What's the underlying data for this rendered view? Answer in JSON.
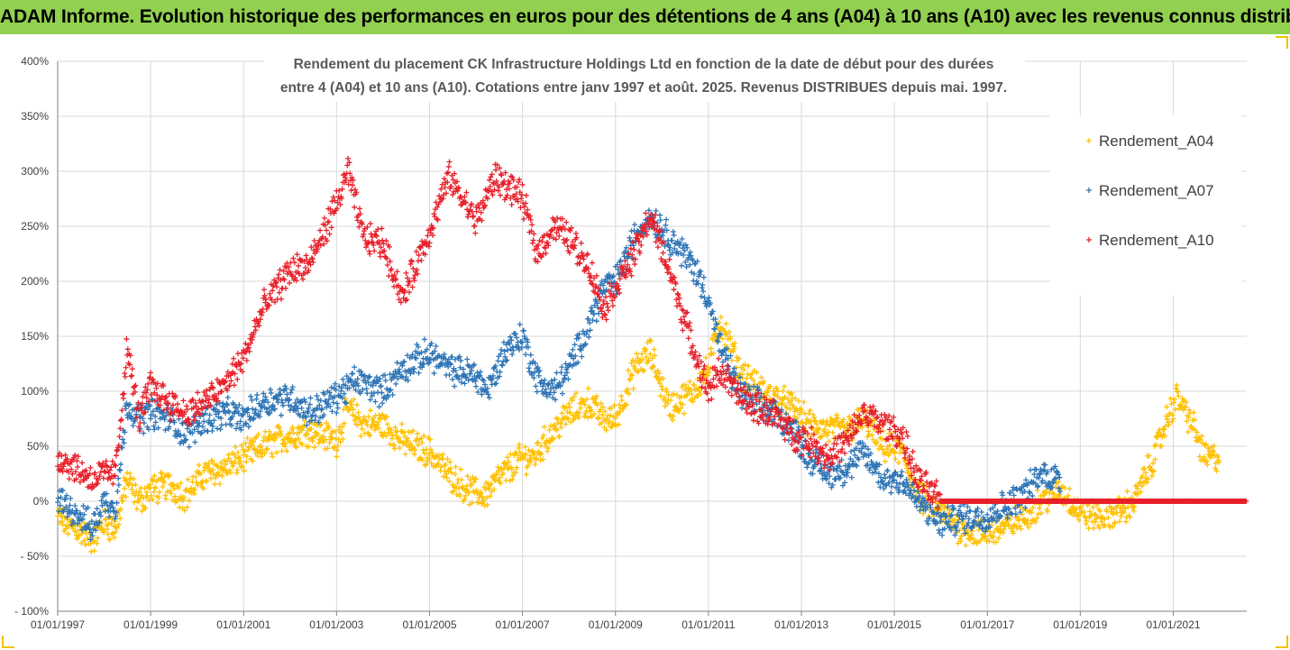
{
  "banner": {
    "title": "ADAM Informe. Evolution historique des performances en euros pour des détentions de 4 ans (A04) à 10 ans (A10) avec les revenus connus distribués"
  },
  "colors": {
    "banner_bg": "#92d050",
    "A04": "#ffc000",
    "A07": "#2e75b6",
    "A10": "#e8202a",
    "grid": "#d9d9d9"
  },
  "chart_data": {
    "type": "scatter",
    "title_lines": [
      "Rendement du placement CK Infrastructure Holdings Ltd en fonction de la date de début pour des durées",
      "entre 4 (A04) et 10 ans (A10). Cotations entre janv 1997 et août. 2025. Revenus DISTRIBUES depuis mai. 1997."
    ],
    "xlabel": "",
    "ylabel": "",
    "x_ticks": [
      "01/01/1997",
      "01/01/1999",
      "01/01/2001",
      "01/01/2003",
      "01/01/2005",
      "01/01/2007",
      "01/01/2009",
      "01/01/2011",
      "01/01/2013",
      "01/01/2015",
      "01/01/2017",
      "01/01/2019",
      "01/01/2021"
    ],
    "x_range": [
      "1997-01-01",
      "2022-08-01"
    ],
    "y_ticks": [
      "- 100%",
      "- 50%",
      "0%",
      "50%",
      "100%",
      "150%",
      "200%",
      "250%",
      "300%",
      "350%",
      "400%"
    ],
    "ylim": [
      -100,
      400
    ],
    "grid": true,
    "legend_position": "right",
    "marker": "plus",
    "series": [
      {
        "name": "Rendement_A04",
        "color": "#ffc000",
        "points": [
          [
            "1997-01-01",
            -15
          ],
          [
            "1997-06-01",
            -25
          ],
          [
            "1997-10-01",
            -35
          ],
          [
            "1998-01-01",
            -20
          ],
          [
            "1998-04-01",
            -25
          ],
          [
            "1998-07-01",
            20
          ],
          [
            "1998-10-01",
            0
          ],
          [
            "1999-01-01",
            10
          ],
          [
            "1999-06-01",
            15
          ],
          [
            "1999-10-01",
            5
          ],
          [
            "2000-03-01",
            25
          ],
          [
            "2000-08-01",
            30
          ],
          [
            "2001-01-01",
            40
          ],
          [
            "2001-06-01",
            50
          ],
          [
            "2002-01-01",
            60
          ],
          [
            "2002-06-01",
            65
          ],
          [
            "2003-01-01",
            55
          ],
          [
            "2003-04-01",
            85
          ],
          [
            "2003-08-01",
            70
          ],
          [
            "2004-01-01",
            70
          ],
          [
            "2004-06-01",
            55
          ],
          [
            "2005-01-01",
            45
          ],
          [
            "2005-06-01",
            25
          ],
          [
            "2005-11-01",
            10
          ],
          [
            "2006-03-01",
            5
          ],
          [
            "2006-08-01",
            25
          ],
          [
            "2007-01-01",
            40
          ],
          [
            "2007-04-01",
            40
          ],
          [
            "2007-08-01",
            60
          ],
          [
            "2008-01-01",
            80
          ],
          [
            "2008-06-01",
            90
          ],
          [
            "2008-10-01",
            75
          ],
          [
            "2009-01-01",
            75
          ],
          [
            "2009-06-01",
            120
          ],
          [
            "2009-10-01",
            135
          ],
          [
            "2010-03-01",
            85
          ],
          [
            "2010-09-01",
            100
          ],
          [
            "2011-01-01",
            120
          ],
          [
            "2011-04-01",
            165
          ],
          [
            "2011-09-01",
            120
          ],
          [
            "2012-01-01",
            105
          ],
          [
            "2012-06-01",
            95
          ],
          [
            "2012-11-01",
            85
          ],
          [
            "2013-03-01",
            70
          ],
          [
            "2013-08-01",
            65
          ],
          [
            "2014-01-01",
            65
          ],
          [
            "2014-05-01",
            75
          ],
          [
            "2014-10-01",
            50
          ],
          [
            "2015-03-01",
            45
          ],
          [
            "2015-07-01",
            5
          ],
          [
            "2016-01-01",
            -10
          ],
          [
            "2016-06-01",
            -25
          ],
          [
            "2016-12-01",
            -30
          ],
          [
            "2017-05-01",
            -25
          ],
          [
            "2017-10-01",
            -15
          ],
          [
            "2018-03-01",
            0
          ],
          [
            "2018-08-01",
            10
          ],
          [
            "2019-01-01",
            -10
          ],
          [
            "2019-06-01",
            -15
          ],
          [
            "2019-11-01",
            -10
          ],
          [
            "2020-03-01",
            0
          ],
          [
            "2020-08-01",
            40
          ],
          [
            "2020-12-01",
            80
          ],
          [
            "2021-02-01",
            95
          ],
          [
            "2021-06-01",
            70
          ],
          [
            "2021-09-01",
            40
          ],
          [
            "2022-01-01",
            40
          ]
        ]
      },
      {
        "name": "Rendement_A07",
        "color": "#2e75b6",
        "points": [
          [
            "1997-01-01",
            0
          ],
          [
            "1997-06-01",
            -10
          ],
          [
            "1997-10-01",
            -25
          ],
          [
            "1998-01-01",
            0
          ],
          [
            "1998-04-01",
            -5
          ],
          [
            "1998-07-01",
            90
          ],
          [
            "1998-10-01",
            75
          ],
          [
            "1999-01-01",
            80
          ],
          [
            "1999-06-01",
            75
          ],
          [
            "1999-10-01",
            60
          ],
          [
            "2000-03-01",
            75
          ],
          [
            "2000-08-01",
            80
          ],
          [
            "2001-01-01",
            75
          ],
          [
            "2001-06-01",
            90
          ],
          [
            "2002-01-01",
            95
          ],
          [
            "2002-06-01",
            80
          ],
          [
            "2003-01-01",
            95
          ],
          [
            "2003-06-01",
            110
          ],
          [
            "2004-01-01",
            100
          ],
          [
            "2004-06-01",
            120
          ],
          [
            "2005-01-01",
            135
          ],
          [
            "2005-06-01",
            120
          ],
          [
            "2006-01-01",
            115
          ],
          [
            "2006-04-01",
            100
          ],
          [
            "2006-09-01",
            140
          ],
          [
            "2007-01-01",
            150
          ],
          [
            "2007-05-01",
            110
          ],
          [
            "2007-09-01",
            100
          ],
          [
            "2008-01-01",
            120
          ],
          [
            "2008-06-01",
            160
          ],
          [
            "2008-10-01",
            195
          ],
          [
            "2009-01-01",
            200
          ],
          [
            "2009-06-01",
            240
          ],
          [
            "2009-10-01",
            260
          ],
          [
            "2010-03-01",
            240
          ],
          [
            "2010-09-01",
            215
          ],
          [
            "2011-01-01",
            185
          ],
          [
            "2011-04-01",
            140
          ],
          [
            "2011-09-01",
            100
          ],
          [
            "2012-01-01",
            90
          ],
          [
            "2012-06-01",
            80
          ],
          [
            "2012-11-01",
            65
          ],
          [
            "2013-03-01",
            40
          ],
          [
            "2013-08-01",
            25
          ],
          [
            "2014-01-01",
            30
          ],
          [
            "2014-05-01",
            45
          ],
          [
            "2014-10-01",
            20
          ],
          [
            "2015-03-01",
            20
          ],
          [
            "2015-07-01",
            0
          ],
          [
            "2016-01-01",
            -20
          ],
          [
            "2016-06-01",
            -15
          ],
          [
            "2016-12-01",
            -15
          ],
          [
            "2017-05-01",
            -5
          ],
          [
            "2017-10-01",
            5
          ],
          [
            "2018-03-01",
            25
          ],
          [
            "2018-08-01",
            20
          ]
        ]
      },
      {
        "name": "Rendement_A10",
        "color": "#e8202a",
        "points": [
          [
            "1997-01-01",
            40
          ],
          [
            "1997-06-01",
            30
          ],
          [
            "1997-10-01",
            20
          ],
          [
            "1998-01-01",
            25
          ],
          [
            "1998-04-01",
            25
          ],
          [
            "1998-07-01",
            140
          ],
          [
            "1998-10-01",
            75
          ],
          [
            "1999-01-01",
            105
          ],
          [
            "1999-06-01",
            90
          ],
          [
            "1999-10-01",
            80
          ],
          [
            "2000-03-01",
            90
          ],
          [
            "2000-08-01",
            105
          ],
          [
            "2001-01-01",
            130
          ],
          [
            "2001-06-01",
            175
          ],
          [
            "2002-01-01",
            210
          ],
          [
            "2002-06-01",
            215
          ],
          [
            "2003-01-01",
            270
          ],
          [
            "2003-04-01",
            300
          ],
          [
            "2003-08-01",
            240
          ],
          [
            "2004-01-01",
            235
          ],
          [
            "2004-06-01",
            185
          ],
          [
            "2005-01-01",
            245
          ],
          [
            "2005-06-01",
            295
          ],
          [
            "2006-01-01",
            255
          ],
          [
            "2006-06-01",
            295
          ],
          [
            "2007-01-01",
            275
          ],
          [
            "2007-05-01",
            225
          ],
          [
            "2007-09-01",
            250
          ],
          [
            "2008-01-01",
            240
          ],
          [
            "2008-06-01",
            215
          ],
          [
            "2008-10-01",
            175
          ],
          [
            "2009-01-01",
            195
          ],
          [
            "2009-06-01",
            225
          ],
          [
            "2009-10-01",
            260
          ],
          [
            "2010-03-01",
            210
          ],
          [
            "2010-09-01",
            140
          ],
          [
            "2011-01-01",
            100
          ],
          [
            "2011-04-01",
            120
          ],
          [
            "2011-09-01",
            95
          ],
          [
            "2012-01-01",
            85
          ],
          [
            "2012-06-01",
            80
          ],
          [
            "2012-11-01",
            60
          ],
          [
            "2013-03-01",
            55
          ],
          [
            "2013-08-01",
            40
          ],
          [
            "2014-01-01",
            55
          ],
          [
            "2014-05-01",
            80
          ],
          [
            "2014-10-01",
            70
          ],
          [
            "2015-03-01",
            60
          ],
          [
            "2015-07-01",
            20
          ],
          [
            "2016-01-01",
            0
          ],
          [
            "2022-08-01",
            0
          ]
        ]
      }
    ]
  }
}
